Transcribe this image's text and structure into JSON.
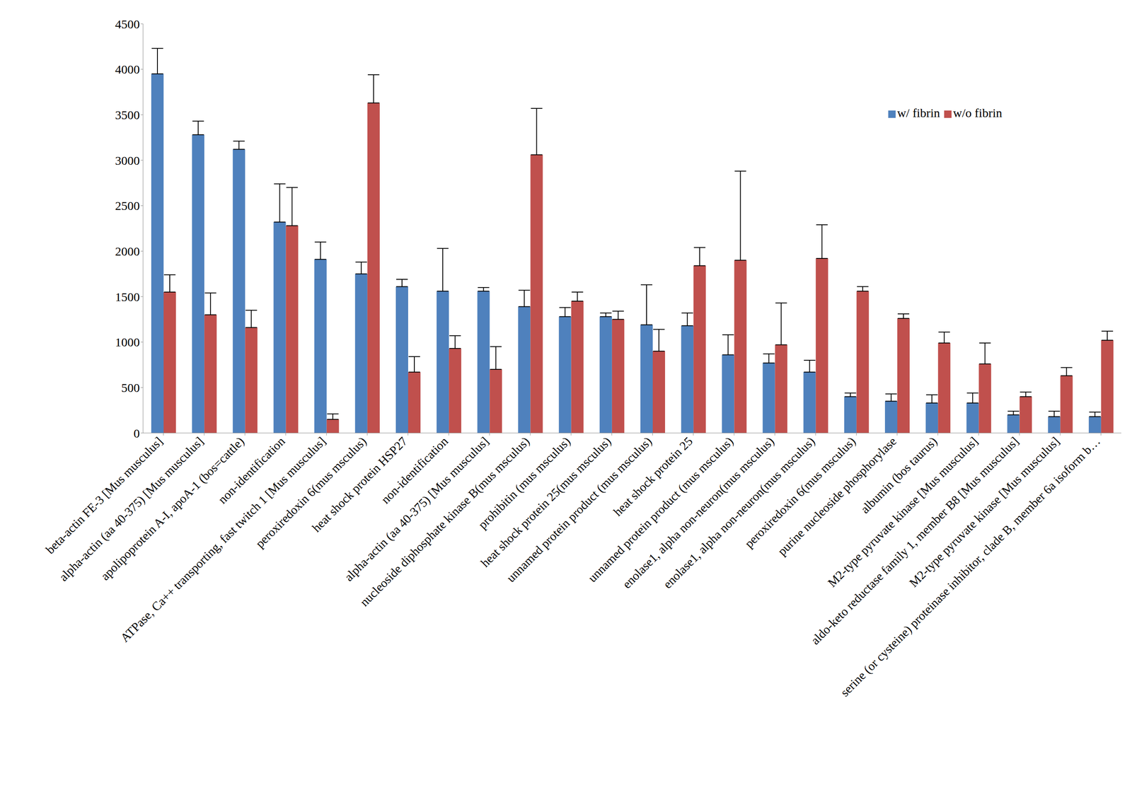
{
  "chart_data": {
    "type": "bar",
    "categories": [
      "beta-actin FE-3 [Mus musculus]",
      "alpha-actin (aa 40-375) [Mus musculus]",
      "apolipoprotein A-I, apoA-1 (bos=cattle)",
      "non-identification",
      "ATPase, Ca++ transporting, fast twitch 1 [Mus musculus]",
      "peroxiredoxin 6(mus msculus)",
      "heat shock protein HSP27",
      "non-identification",
      "alpha-actin (aa 40-375) [Mus musculus]",
      "nucleoside diphosphate kinase B(mus msculus)",
      "prohibitin (mus msculus)",
      "heat shock protein 25(mus msculus)",
      "unnamed protein product (mus msculus)",
      "heat shock protein 25",
      "unnamed protein product (mus msculus)",
      "enolase1, alpha non-neuron(mus msculus)",
      "enolase1, alpha non-neuron(mus msculus)",
      "peroxiredoxin 6(mus msculus)",
      "purine nucleoside phosphorylase",
      "albumin (bos taurus)",
      "M2-type pyruvate kinase [Mus musculus]",
      "aldo-keto reductase family 1, member B8 [Mus musculus]",
      "M2-type pyruvate kinase [Mus musculus]",
      "serine (or cysteine) proteinase inhibitor, clade B, member 6a isoform b…"
    ],
    "series": [
      {
        "name": "w/ fibrin",
        "color": "#4f81bd",
        "values": [
          3950,
          3280,
          3120,
          2320,
          1910,
          1750,
          1610,
          1560,
          1560,
          1390,
          1280,
          1280,
          1190,
          1180,
          860,
          770,
          670,
          400,
          350,
          330,
          330,
          200,
          180,
          180
        ],
        "errors": [
          280,
          150,
          90,
          420,
          190,
          130,
          80,
          470,
          40,
          180,
          100,
          40,
          440,
          140,
          220,
          100,
          130,
          40,
          80,
          90,
          110,
          40,
          60,
          50
        ]
      },
      {
        "name": "w/o fibrin",
        "color": "#c0504d",
        "values": [
          1550,
          1300,
          1160,
          2280,
          150,
          3630,
          670,
          930,
          700,
          3060,
          1450,
          1250,
          900,
          1840,
          1900,
          970,
          1920,
          1560,
          1260,
          990,
          760,
          400,
          630,
          1020
        ],
        "errors": [
          190,
          240,
          190,
          420,
          60,
          310,
          170,
          140,
          250,
          510,
          100,
          90,
          240,
          200,
          980,
          460,
          370,
          50,
          50,
          120,
          230,
          50,
          90,
          100
        ]
      }
    ],
    "ylim": [
      0,
      4500
    ],
    "yticks": [
      0,
      500,
      1000,
      1500,
      2000,
      2500,
      3000,
      3500,
      4000,
      4500
    ],
    "grid": false,
    "legend": "upper right"
  }
}
